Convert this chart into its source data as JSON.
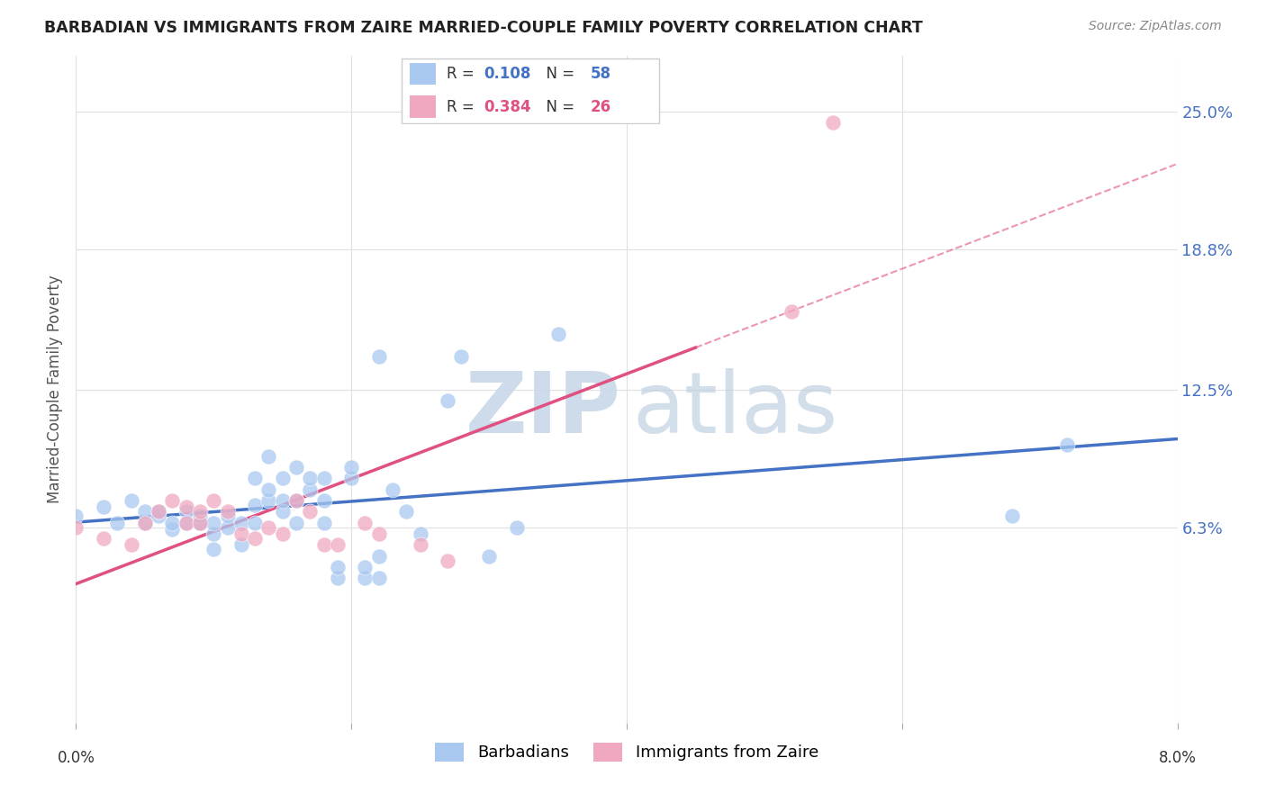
{
  "title": "BARBADIAN VS IMMIGRANTS FROM ZAIRE MARRIED-COUPLE FAMILY POVERTY CORRELATION CHART",
  "source": "Source: ZipAtlas.com",
  "ylabel": "Married-Couple Family Poverty",
  "ytick_labels": [
    "6.3%",
    "12.5%",
    "18.8%",
    "25.0%"
  ],
  "ytick_values": [
    0.063,
    0.125,
    0.188,
    0.25
  ],
  "xlim": [
    0.0,
    0.08
  ],
  "ylim": [
    -0.025,
    0.275
  ],
  "xtick_positions": [
    0.0,
    0.02,
    0.04,
    0.06,
    0.08
  ],
  "legend_label1": "Barbadians",
  "legend_label2": "Immigrants from Zaire",
  "R1": "0.108",
  "N1": "58",
  "R2": "0.384",
  "N2": "26",
  "color1": "#a8c8f0",
  "color2": "#f0a8c0",
  "trendline1_color": "#4472c4",
  "trendline2_color": "#e05080",
  "watermark_zip_color": "#c8d8e8",
  "watermark_atlas_color": "#c0d0e0",
  "scatter1_x": [
    0.0,
    0.002,
    0.003,
    0.004,
    0.005,
    0.005,
    0.006,
    0.006,
    0.007,
    0.007,
    0.008,
    0.008,
    0.009,
    0.009,
    0.009,
    0.01,
    0.01,
    0.01,
    0.011,
    0.011,
    0.012,
    0.012,
    0.013,
    0.013,
    0.013,
    0.014,
    0.014,
    0.014,
    0.015,
    0.015,
    0.015,
    0.016,
    0.016,
    0.016,
    0.017,
    0.017,
    0.018,
    0.018,
    0.018,
    0.019,
    0.019,
    0.02,
    0.02,
    0.021,
    0.021,
    0.022,
    0.022,
    0.022,
    0.023,
    0.024,
    0.025,
    0.027,
    0.028,
    0.03,
    0.032,
    0.035,
    0.068,
    0.072
  ],
  "scatter1_y": [
    0.068,
    0.072,
    0.065,
    0.075,
    0.065,
    0.07,
    0.068,
    0.07,
    0.062,
    0.065,
    0.065,
    0.07,
    0.065,
    0.065,
    0.068,
    0.053,
    0.06,
    0.065,
    0.063,
    0.068,
    0.055,
    0.065,
    0.065,
    0.073,
    0.085,
    0.075,
    0.08,
    0.095,
    0.07,
    0.075,
    0.085,
    0.065,
    0.075,
    0.09,
    0.08,
    0.085,
    0.065,
    0.075,
    0.085,
    0.04,
    0.045,
    0.085,
    0.09,
    0.04,
    0.045,
    0.04,
    0.05,
    0.14,
    0.08,
    0.07,
    0.06,
    0.12,
    0.14,
    0.05,
    0.063,
    0.15,
    0.068,
    0.1
  ],
  "scatter2_x": [
    0.0,
    0.002,
    0.004,
    0.005,
    0.006,
    0.007,
    0.008,
    0.008,
    0.009,
    0.009,
    0.01,
    0.011,
    0.012,
    0.013,
    0.014,
    0.015,
    0.016,
    0.017,
    0.018,
    0.019,
    0.021,
    0.022,
    0.025,
    0.027,
    0.052,
    0.055
  ],
  "scatter2_y": [
    0.063,
    0.058,
    0.055,
    0.065,
    0.07,
    0.075,
    0.065,
    0.072,
    0.065,
    0.07,
    0.075,
    0.07,
    0.06,
    0.058,
    0.063,
    0.06,
    0.075,
    0.07,
    0.055,
    0.055,
    0.065,
    0.06,
    0.055,
    0.048,
    0.16,
    0.245
  ],
  "trendline1_x_start": 0.0,
  "trendline1_x_end": 0.08,
  "trendline2_solid_x_end": 0.045,
  "trendline2_dashed_x_start": 0.045,
  "trendline2_x_end": 0.08
}
